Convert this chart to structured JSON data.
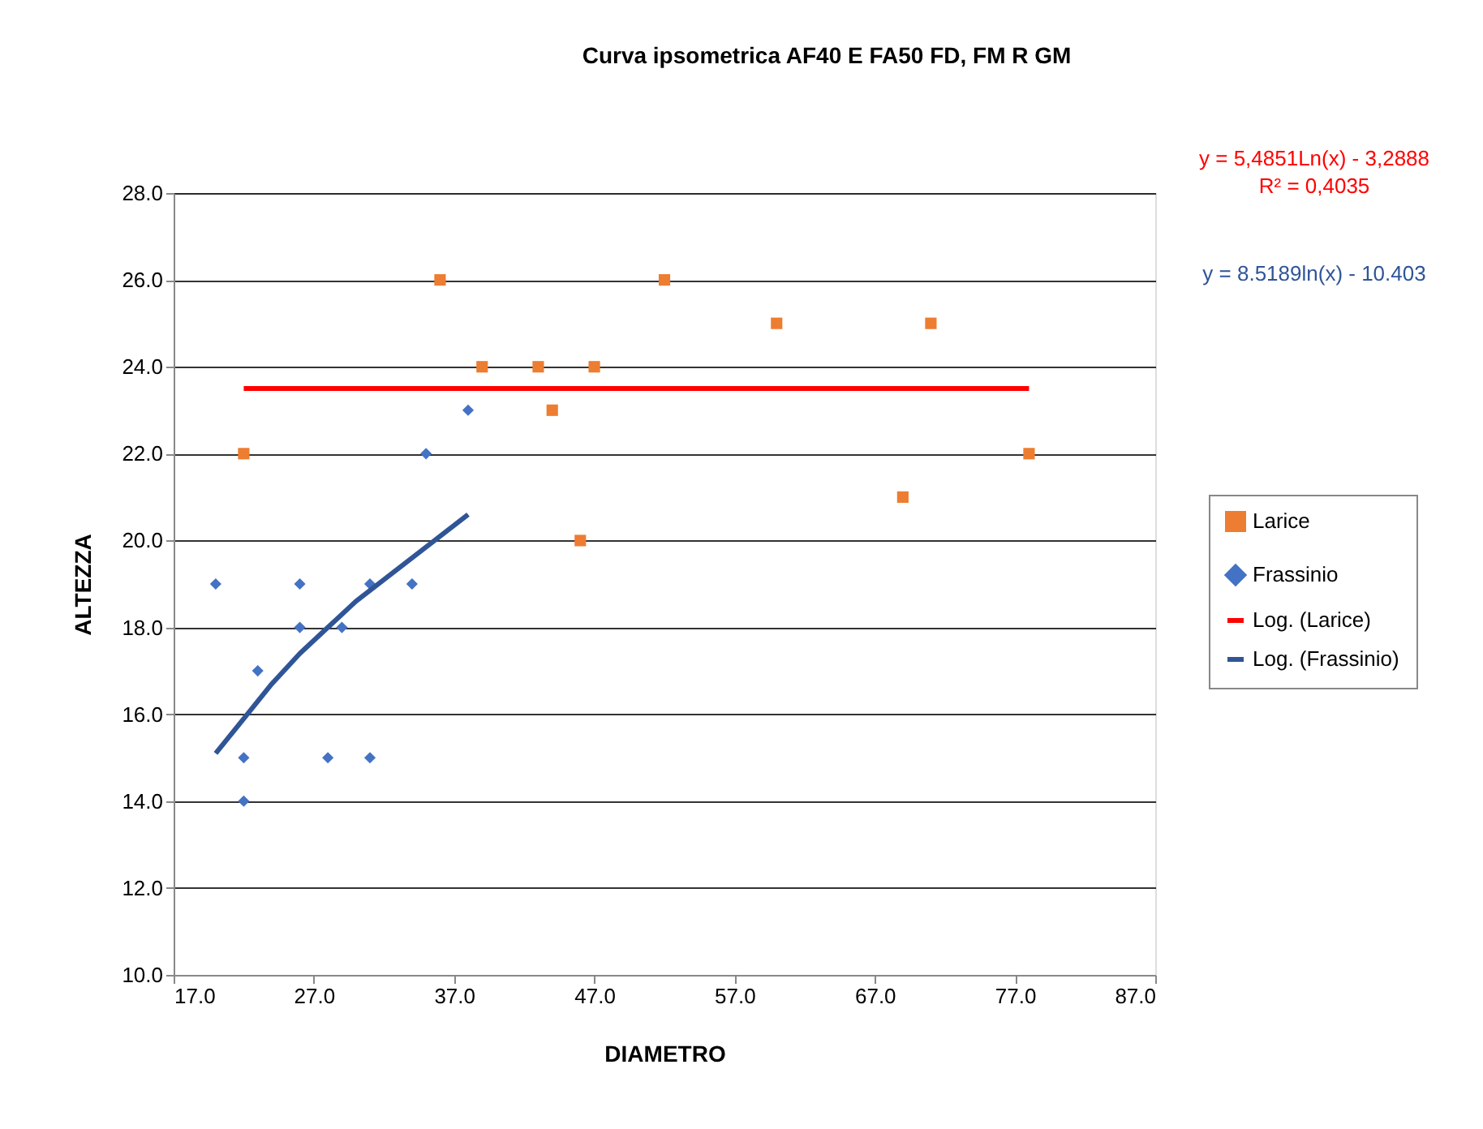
{
  "chart_data": {
    "type": "scatter",
    "title": "Curva ipsometrica AF40 E FA50 FD, FM R GM",
    "xlabel": "DIAMETRO",
    "ylabel": "ALTEZZA",
    "xlim": [
      17,
      87
    ],
    "ylim": [
      10,
      28
    ],
    "xticks": [
      {
        "value": 17,
        "label": "17.0"
      },
      {
        "value": 27,
        "label": "27.0"
      },
      {
        "value": 37,
        "label": "37.0"
      },
      {
        "value": 47,
        "label": "47.0"
      },
      {
        "value": 57,
        "label": "57.0"
      },
      {
        "value": 67,
        "label": "67.0"
      },
      {
        "value": 77,
        "label": "77.0"
      },
      {
        "value": 87,
        "label": "87.0"
      }
    ],
    "yticks": [
      {
        "value": 10,
        "label": "10.0"
      },
      {
        "value": 12,
        "label": "12.0"
      },
      {
        "value": 14,
        "label": "14.0"
      },
      {
        "value": 16,
        "label": "16.0"
      },
      {
        "value": 18,
        "label": "18.0"
      },
      {
        "value": 20,
        "label": "20.0"
      },
      {
        "value": 22,
        "label": "22.0"
      },
      {
        "value": 24,
        "label": "24.0"
      },
      {
        "value": 26,
        "label": "26.0"
      },
      {
        "value": 28,
        "label": "28.0"
      }
    ],
    "grid": "y",
    "legend": "right",
    "series": [
      {
        "name": "Larice",
        "marker": "square",
        "color": "#ed7d31",
        "x": [
          22,
          36,
          39,
          43,
          44,
          46,
          47,
          52,
          60,
          69,
          71,
          78
        ],
        "values": [
          22,
          26,
          24,
          24,
          23,
          20,
          24,
          26,
          25,
          21,
          25,
          22
        ]
      },
      {
        "name": "Frassinio",
        "marker": "diamond",
        "color": "#4472c4",
        "x": [
          20,
          22,
          22,
          23,
          26,
          26,
          28,
          29,
          31,
          31,
          34,
          35,
          38
        ],
        "values": [
          19,
          15,
          14,
          17,
          19,
          18,
          15,
          18,
          19,
          15,
          19,
          22,
          23
        ]
      },
      {
        "name": "Log. (Larice)",
        "type": "line",
        "marker": "none",
        "color": "#ff0000",
        "x": [
          22,
          47,
          78
        ],
        "values": [
          23.5,
          23.5,
          23.5
        ]
      },
      {
        "name": "Log. (Frassinio)",
        "type": "line",
        "marker": "none",
        "color": "#2f5597",
        "x": [
          20,
          22,
          24,
          26,
          28,
          30,
          32,
          34,
          36,
          38
        ],
        "values": [
          15.1,
          15.9,
          16.7,
          17.4,
          18.0,
          18.6,
          19.1,
          19.6,
          20.1,
          20.6
        ]
      }
    ],
    "annotations": [
      "y = 5,4851Ln(x) - 3,2888",
      "R² = 0,4035",
      "y = 8.5189ln(x) - 10.403"
    ]
  }
}
